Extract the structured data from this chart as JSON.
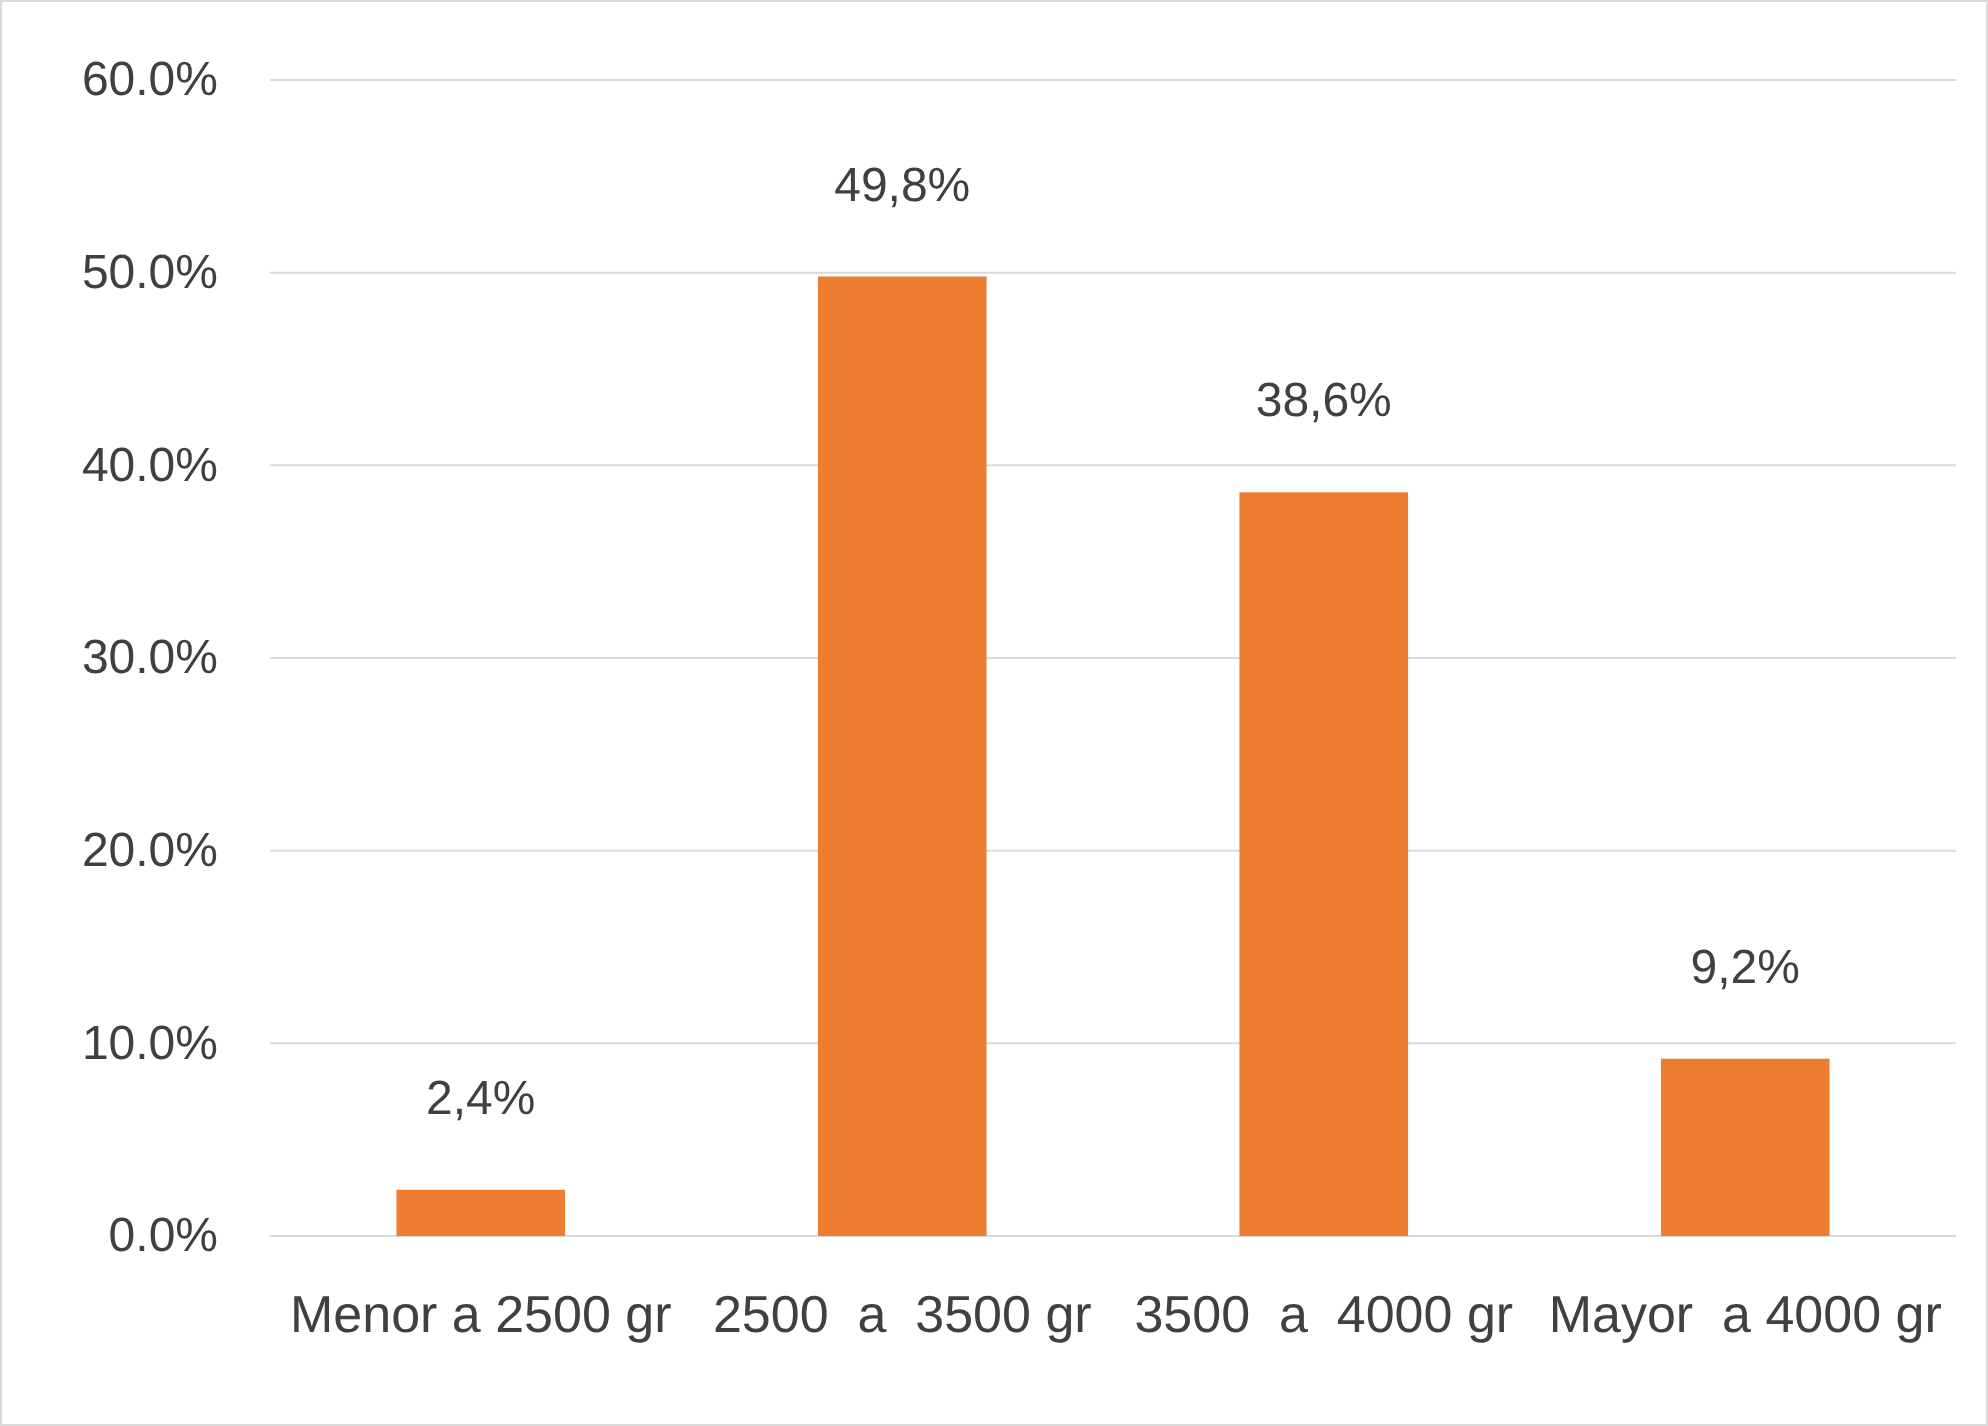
{
  "chart_data": {
    "type": "bar",
    "categories": [
      "Menor a 2500 gr",
      "2500  a  3500 gr",
      "3500  a  4000 gr",
      "Mayor  a 4000 gr"
    ],
    "values": [
      2.4,
      49.8,
      38.6,
      9.2
    ],
    "color": "#ed7d31",
    "value_labels": [
      "2,4%",
      "49,8%",
      "38,6%",
      "9,2%"
    ],
    "ylim": [
      0,
      60
    ],
    "yticks": [
      {
        "value": 0,
        "label": "0.0%"
      },
      {
        "value": 10,
        "label": "10.0%"
      },
      {
        "value": 20,
        "label": "20.0%"
      },
      {
        "value": 30,
        "label": "30.0%"
      },
      {
        "value": 40,
        "label": "40.0%"
      },
      {
        "value": 50,
        "label": "50.0%"
      },
      {
        "value": 60,
        "label": "60.0%"
      }
    ],
    "grid": "y"
  }
}
